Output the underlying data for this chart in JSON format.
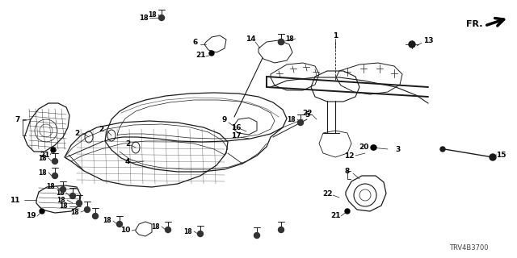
{
  "bg_color": "#ffffff",
  "line_color": "#1a1a1a",
  "label_color": "#000000",
  "figsize": [
    6.4,
    3.2
  ],
  "dpi": 100,
  "diagram_id": "TRV4B3700",
  "fr_text": "FR.",
  "title_fontsize": 7,
  "label_fontsize": 6.5,
  "lw_main": 0.9,
  "lw_thin": 0.5,
  "lw_bold": 1.4
}
